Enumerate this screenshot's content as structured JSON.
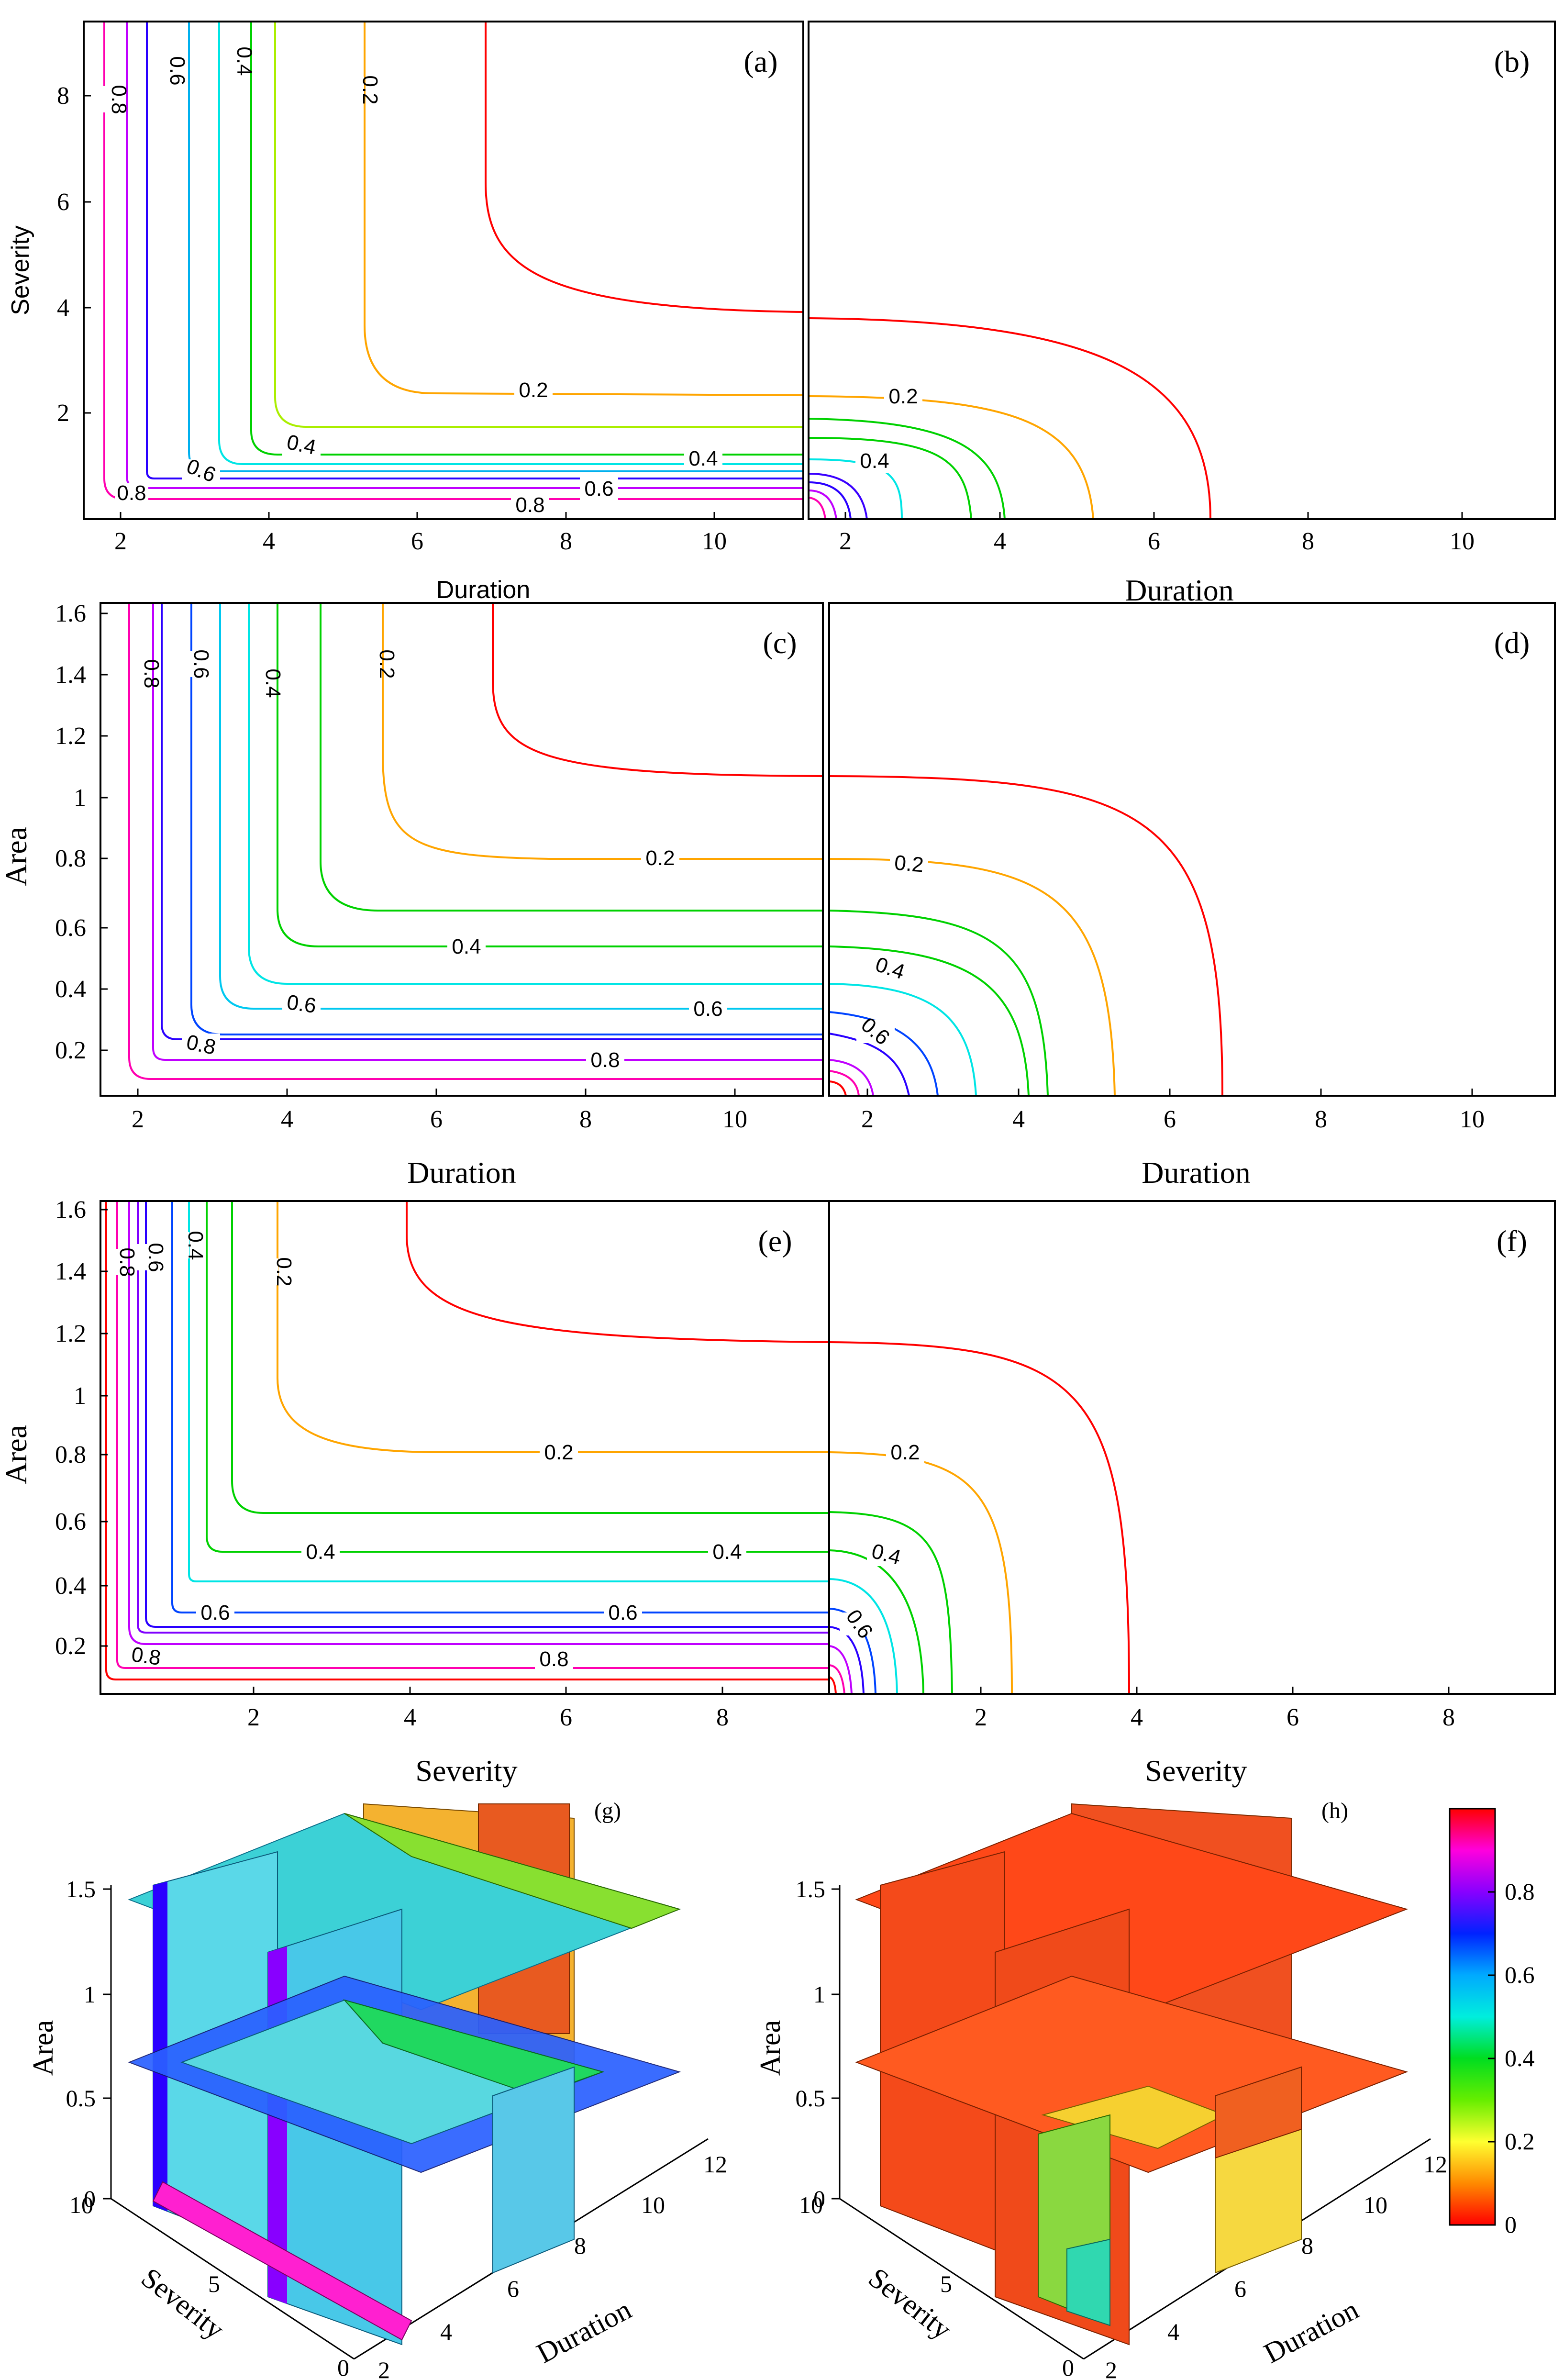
{
  "colors": {
    "0.1": "#ff0000",
    "0.2": "#ffa500",
    "0.3": "#aaee00",
    "0.4": "#00d100",
    "0.5": "#00e5e5",
    "0.6": "#0044ff",
    "0.7": "#2a00ff",
    "0.8": "#c000ff",
    "0.9": "#ff00b0",
    "1.0": "#ff0000"
  },
  "chart_data": [
    {
      "panel": "(a)",
      "type": "contour",
      "xlabel": "Duration",
      "ylabel": "Severity",
      "xlim": [
        1.5,
        11.2
      ],
      "ylim": [
        0.05,
        9.4
      ],
      "xticks": [
        2,
        4,
        6,
        8,
        10
      ],
      "yticks": [
        2,
        4,
        6,
        8
      ],
      "levels": [
        0.1,
        0.2,
        0.3,
        0.4,
        0.5,
        0.6,
        0.7,
        0.8,
        0.9
      ],
      "labelled_levels": [
        "0.8",
        "0.6",
        "0.4",
        "0.2",
        "0.2",
        "0.4",
        "0.4",
        "0.6",
        "0.6",
        "0.8",
        "0.8"
      ]
    },
    {
      "panel": "(b)",
      "type": "contour",
      "xlabel": "Duration",
      "ylabel": "",
      "xlim": [
        1.5,
        11.2
      ],
      "ylim": [
        0.05,
        9.4
      ],
      "xticks": [
        2,
        4,
        6,
        8,
        10
      ],
      "levels": [
        0.1,
        0.2,
        0.3,
        0.4,
        0.5,
        0.6,
        0.7,
        0.8,
        0.9
      ],
      "labelled_levels": [
        "0.2",
        "0.4"
      ]
    },
    {
      "panel": "(c)",
      "type": "contour",
      "xlabel": "Duration",
      "ylabel": "Area",
      "xlim": [
        1.5,
        11.2
      ],
      "ylim": [
        0.03,
        1.62
      ],
      "xticks": [
        2,
        4,
        6,
        8,
        10
      ],
      "yticks": [
        0.2,
        0.4,
        0.6,
        0.8,
        1,
        1.2,
        1.4,
        1.6
      ],
      "levels": [
        0.1,
        0.2,
        0.3,
        0.4,
        0.5,
        0.6,
        0.7,
        0.8,
        0.9
      ],
      "labelled_levels": [
        "0.8",
        "0.6",
        "0.4",
        "0.2",
        "0.2",
        "0.4",
        "0.6",
        "0.6",
        "0.8",
        "0.8"
      ]
    },
    {
      "panel": "(d)",
      "type": "contour",
      "xlabel": "Duration",
      "ylabel": "",
      "xlim": [
        1.5,
        11.2
      ],
      "ylim": [
        0.03,
        1.62
      ],
      "xticks": [
        2,
        4,
        6,
        8,
        10
      ],
      "levels": [
        0.1,
        0.2,
        0.3,
        0.4,
        0.5,
        0.6,
        0.7,
        0.8,
        0.9
      ],
      "labelled_levels": [
        "0.2",
        "0.4",
        "0.6"
      ]
    },
    {
      "panel": "(e)",
      "type": "contour",
      "xlabel": "Severity",
      "ylabel": "Area",
      "xlim": [
        0.05,
        9.4
      ],
      "ylim": [
        0.03,
        1.62
      ],
      "xticks": [
        2,
        4,
        6,
        8
      ],
      "yticks": [
        0.2,
        0.4,
        0.6,
        0.8,
        1,
        1.2,
        1.4,
        1.6
      ],
      "levels": [
        0.1,
        0.2,
        0.3,
        0.4,
        0.5,
        0.6,
        0.7,
        0.8,
        0.9,
        1.0
      ],
      "labelled_levels": [
        "0.8",
        "0.6",
        "0.4",
        "0.2",
        "0.2",
        "0.4",
        "0.4",
        "0.6",
        "0.6",
        "0.8",
        "0.8"
      ]
    },
    {
      "panel": "(f)",
      "type": "contour",
      "xlabel": "Severity",
      "ylabel": "",
      "xlim": [
        0.05,
        9.4
      ],
      "ylim": [
        0.03,
        1.62
      ],
      "xticks": [
        2,
        4,
        6,
        8
      ],
      "levels": [
        0.1,
        0.2,
        0.3,
        0.4,
        0.5,
        0.6,
        0.7,
        0.8,
        0.9
      ],
      "labelled_levels": [
        "0.2",
        "0.4",
        "0.6"
      ]
    },
    {
      "panel": "(g)",
      "type": "3d-slice",
      "xlabel": "Duration",
      "ylabel": "Severity",
      "zlabel": "Area",
      "xticks": [
        2,
        4,
        6,
        8,
        10,
        12
      ],
      "yticks": [
        0,
        5,
        10
      ],
      "zticks": [
        0,
        0.5,
        1,
        1.5
      ]
    },
    {
      "panel": "(h)",
      "type": "3d-slice",
      "xlabel": "Duration",
      "ylabel": "Severity",
      "zlabel": "Area",
      "xticks": [
        2,
        4,
        6,
        8,
        10,
        12
      ],
      "yticks": [
        0,
        5,
        10
      ],
      "zticks": [
        0,
        0.5,
        1,
        1.5
      ]
    }
  ],
  "colorbar": {
    "range": [
      0,
      1
    ],
    "ticks": [
      "0",
      "0.2",
      "0.4",
      "0.6",
      "0.8"
    ]
  }
}
